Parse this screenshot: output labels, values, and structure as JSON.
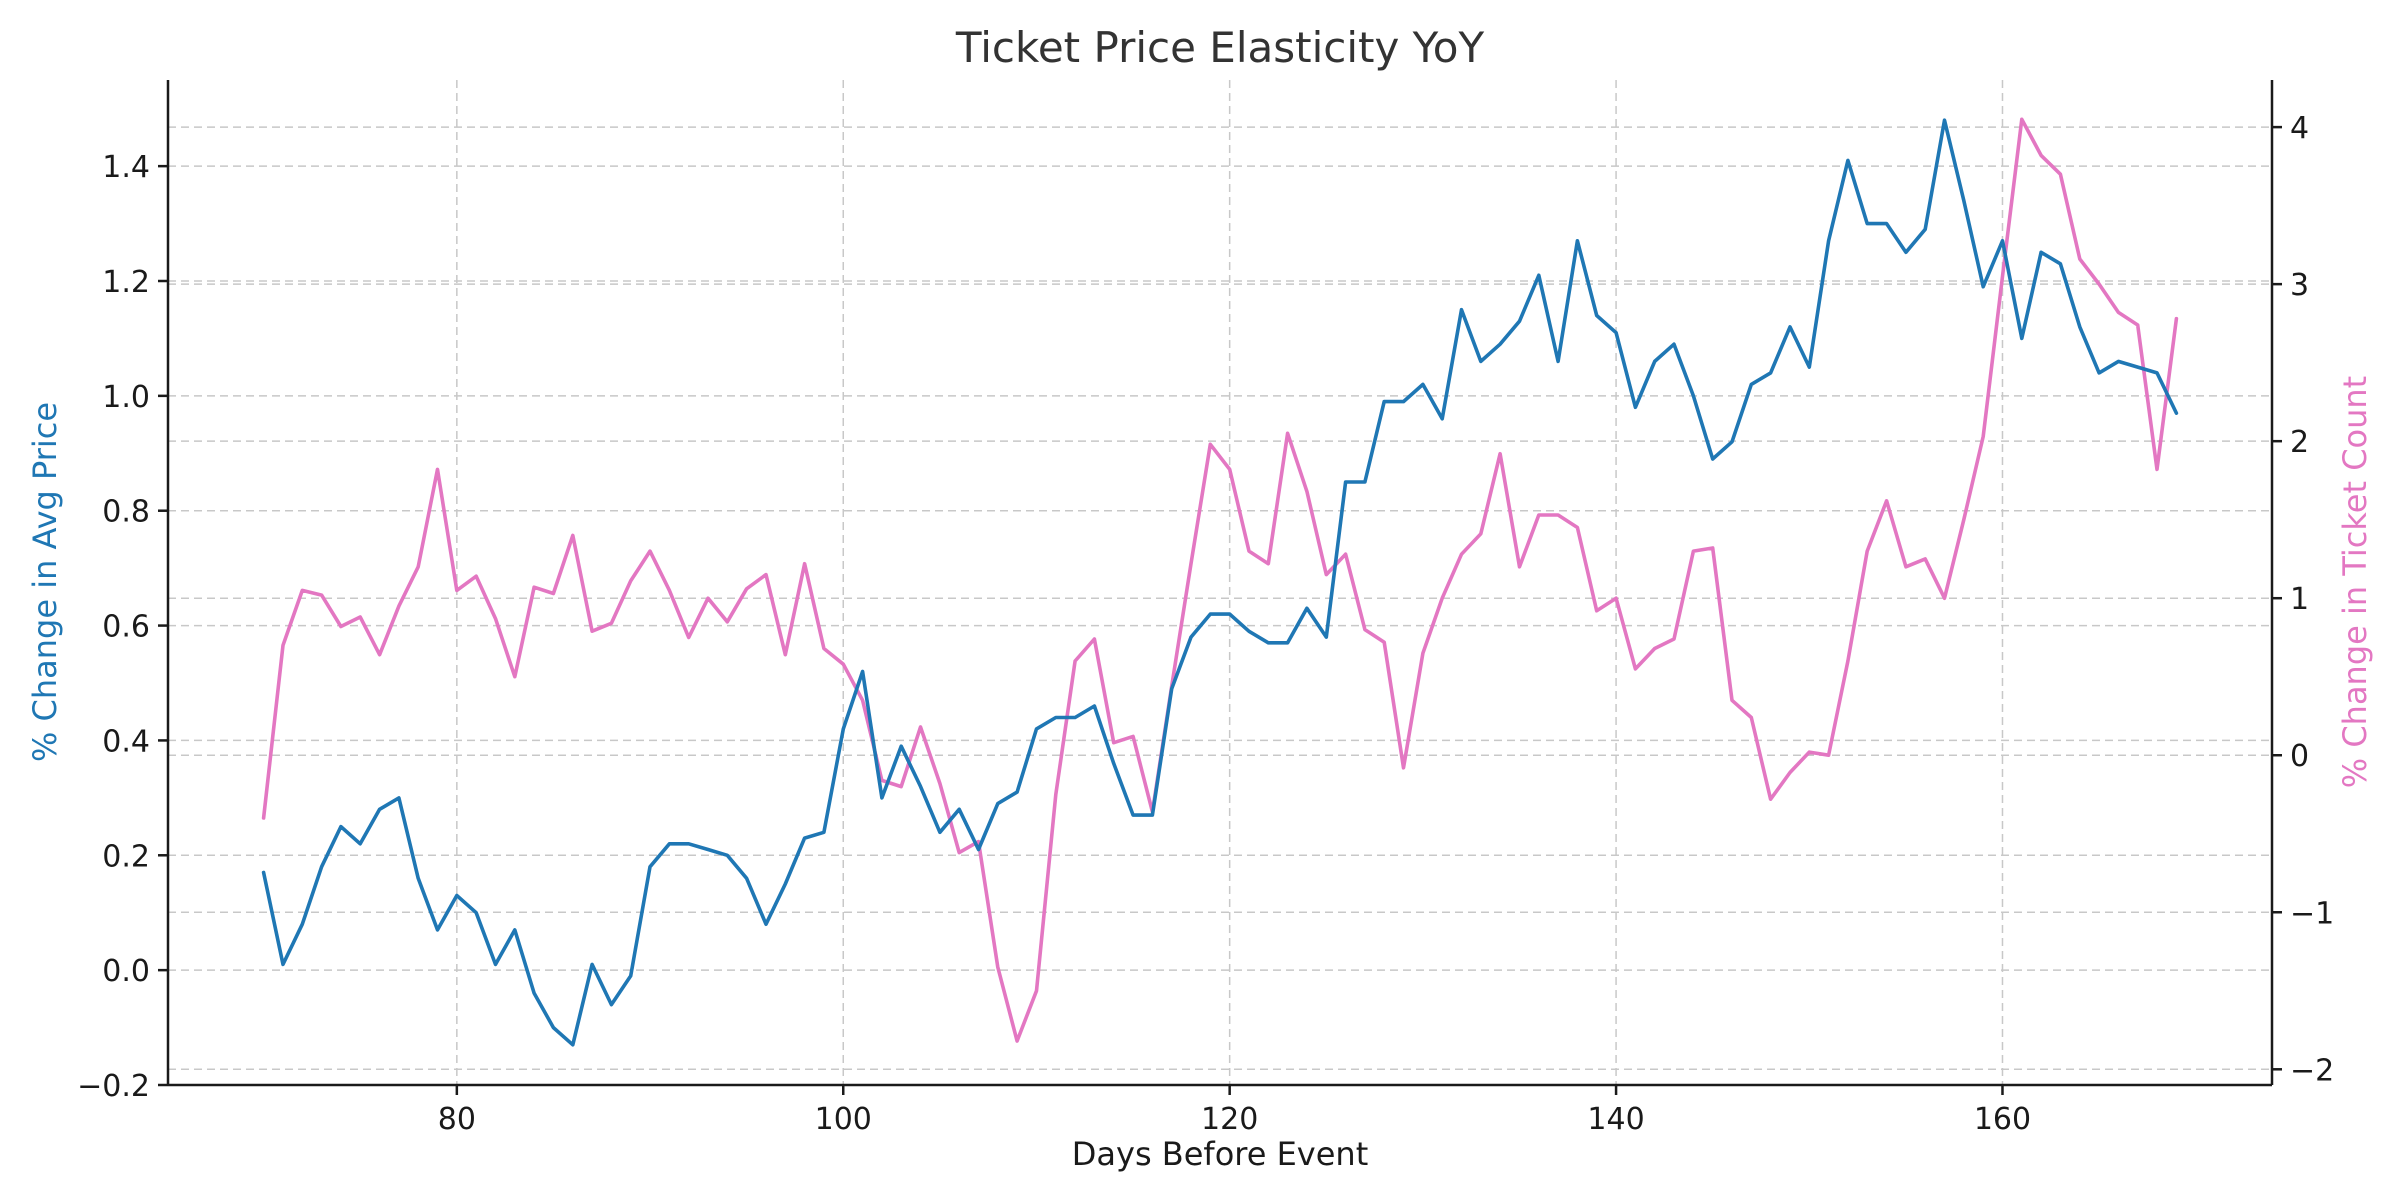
{
  "chart_data": {
    "type": "line",
    "title": "Ticket Price Elasticity YoY",
    "xlabel": "Days Before Event",
    "ylabel": "% Change in Avg Price",
    "y2label": "% Change in Ticket Count",
    "xlim": [
      65.05,
      173.95
    ],
    "ylim": [
      -0.2,
      1.55
    ],
    "y2lim": [
      -2.1,
      4.3
    ],
    "x_ticks": [
      80,
      100,
      120,
      140,
      160
    ],
    "y_ticks": [
      -0.2,
      0.0,
      0.2,
      0.4,
      0.6,
      0.8,
      1.0,
      1.2,
      1.4
    ],
    "y_tick_labels": [
      "−0.2",
      "0.0",
      "0.2",
      "0.4",
      "0.6",
      "0.8",
      "1.0",
      "1.2",
      "1.4"
    ],
    "y2_ticks": [
      -2,
      -1,
      0,
      1,
      2,
      3,
      4
    ],
    "y2_tick_labels": [
      "−2",
      "−1",
      "0",
      "1",
      "2",
      "3",
      "4"
    ],
    "grid": true,
    "colors": {
      "primary": "#1f77b4",
      "secondary": "#e377c2"
    },
    "x": [
      70,
      71,
      72,
      73,
      74,
      75,
      76,
      77,
      78,
      79,
      80,
      81,
      82,
      83,
      84,
      85,
      86,
      87,
      88,
      89,
      90,
      91,
      92,
      93,
      94,
      95,
      96,
      97,
      98,
      99,
      100,
      101,
      102,
      103,
      104,
      105,
      106,
      107,
      108,
      109,
      110,
      111,
      112,
      113,
      114,
      115,
      116,
      117,
      118,
      119,
      120,
      121,
      122,
      123,
      124,
      125,
      126,
      127,
      128,
      129,
      130,
      131,
      132,
      133,
      134,
      135,
      136,
      137,
      138,
      139,
      140,
      141,
      142,
      143,
      144,
      145,
      146,
      147,
      148,
      149,
      150,
      151,
      152,
      153,
      154,
      155,
      156,
      157,
      158,
      159,
      160,
      161,
      162,
      163,
      164,
      165,
      166,
      167,
      168,
      169
    ],
    "series": [
      {
        "axis": "left",
        "values": [
          0.17,
          0.01,
          0.08,
          0.18,
          0.25,
          0.22,
          0.28,
          0.3,
          0.16,
          0.07,
          0.13,
          0.1,
          0.01,
          0.07,
          -0.04,
          -0.1,
          -0.13,
          0.01,
          -0.06,
          -0.01,
          0.18,
          0.22,
          0.22,
          0.21,
          0.2,
          0.16,
          0.08,
          0.15,
          0.23,
          0.24,
          0.42,
          0.52,
          0.3,
          0.39,
          0.32,
          0.24,
          0.28,
          0.21,
          0.29,
          0.31,
          0.42,
          0.44,
          0.44,
          0.46,
          0.36,
          0.27,
          0.27,
          0.49,
          0.58,
          0.62,
          0.62,
          0.59,
          0.57,
          0.57,
          0.63,
          0.58,
          0.85,
          0.85,
          0.99,
          0.99,
          1.02,
          0.96,
          1.15,
          1.06,
          1.09,
          1.13,
          1.21,
          1.06,
          1.27,
          1.14,
          1.11,
          0.98,
          1.06,
          1.09,
          1.0,
          0.89,
          0.92,
          1.02,
          1.04,
          1.12,
          1.05,
          1.27,
          1.41,
          1.3,
          1.3,
          1.25,
          1.29,
          1.48,
          1.34,
          1.19,
          1.27,
          1.1,
          1.25,
          1.23,
          1.12,
          1.04,
          1.06,
          1.05,
          1.04,
          0.97
        ]
      },
      {
        "axis": "right",
        "values": [
          -0.4,
          0.7,
          1.05,
          1.02,
          0.82,
          0.88,
          0.64,
          0.95,
          1.2,
          1.82,
          1.05,
          1.14,
          0.87,
          0.5,
          1.07,
          1.03,
          1.4,
          0.79,
          0.84,
          1.11,
          1.3,
          1.05,
          0.75,
          1.0,
          0.85,
          1.06,
          1.15,
          0.64,
          1.22,
          0.68,
          0.58,
          0.35,
          -0.16,
          -0.2,
          0.18,
          -0.18,
          -0.62,
          -0.55,
          -1.35,
          -1.82,
          -1.5,
          -0.25,
          0.6,
          0.74,
          0.08,
          0.12,
          -0.36,
          0.44,
          1.22,
          1.98,
          1.82,
          1.3,
          1.22,
          2.05,
          1.68,
          1.15,
          1.28,
          0.8,
          0.72,
          -0.08,
          0.65,
          1.0,
          1.28,
          1.41,
          1.92,
          1.2,
          1.53,
          1.53,
          1.45,
          0.92,
          1.0,
          0.55,
          0.68,
          0.74,
          1.3,
          1.32,
          0.35,
          0.24,
          -0.28,
          -0.11,
          0.02,
          0.0,
          0.6,
          1.3,
          1.62,
          1.2,
          1.25,
          1.0,
          1.5,
          2.03,
          3.05,
          4.05,
          3.82,
          3.7,
          3.16,
          3.0,
          2.82,
          2.74,
          1.82,
          2.78
        ]
      }
    ]
  }
}
